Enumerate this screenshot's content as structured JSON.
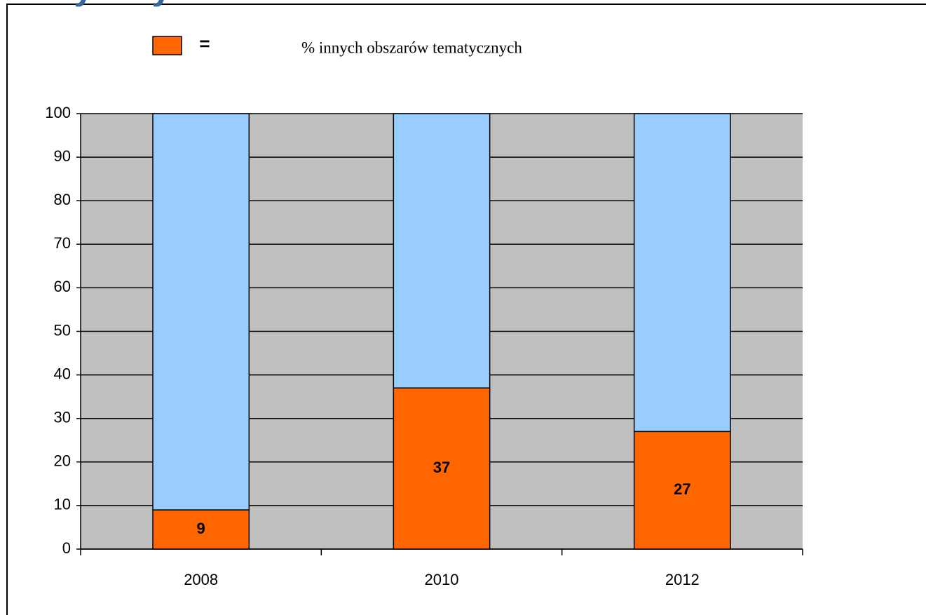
{
  "chart_data": {
    "type": "stacked_bar",
    "title": "tematycznych",
    "legend_sign": "=",
    "categories": [
      "2008",
      "2010",
      "2012"
    ],
    "series": [
      {
        "name": "% innych obszarów tematycznych",
        "color": "#ff6600",
        "values": [
          9,
          37,
          27
        ],
        "data_labels": true
      },
      {
        "color": "#99ccff",
        "values": [
          91,
          63,
          73
        ]
      }
    ],
    "ylim": [
      0,
      100
    ],
    "yticks": [
      0,
      10,
      20,
      30,
      40,
      50,
      60,
      70,
      80,
      90,
      100
    ],
    "grid": true,
    "plot_background": "#c0c0c0",
    "legend": "top"
  }
}
